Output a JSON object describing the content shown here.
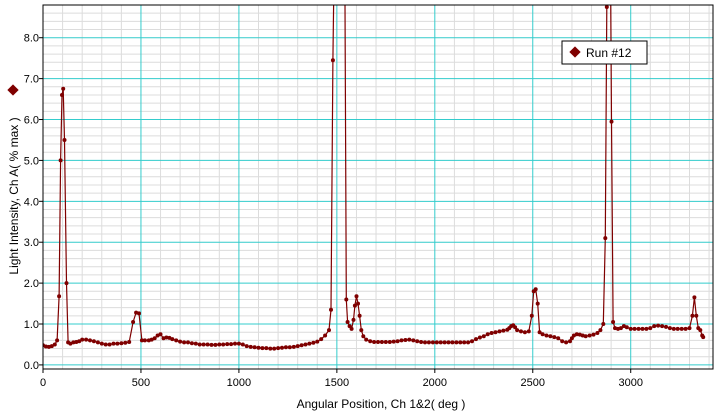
{
  "chart_data": {
    "type": "line",
    "title": "",
    "xlabel": "Angular Position, Ch 1&2( deg )",
    "ylabel": "Light Intensity, Ch A( % max )",
    "xlim": [
      0,
      3420
    ],
    "ylim": [
      -0.1,
      8.8
    ],
    "x_ticks": [
      0,
      500,
      1000,
      1500,
      2000,
      2500,
      3000
    ],
    "y_ticks": [
      0.0,
      1.0,
      2.0,
      3.0,
      4.0,
      5.0,
      6.0,
      7.0,
      8.0
    ],
    "y_tick_labels": [
      "0.0",
      "1.0",
      "2.0",
      "3.0",
      "4.0",
      "5.0",
      "6.0",
      "7.0",
      "8.0"
    ],
    "grid": true,
    "legend_position": "top-right",
    "series": [
      {
        "name": "Run #12",
        "color": "#7f0000",
        "marker": "circle",
        "points": [
          [
            0,
            0.48
          ],
          [
            15,
            0.45
          ],
          [
            30,
            0.44
          ],
          [
            45,
            0.46
          ],
          [
            60,
            0.5
          ],
          [
            72,
            0.6
          ],
          [
            82,
            1.68
          ],
          [
            90,
            5.0
          ],
          [
            97,
            6.6
          ],
          [
            103,
            6.75
          ],
          [
            110,
            5.5
          ],
          [
            120,
            2.0
          ],
          [
            128,
            0.55
          ],
          [
            140,
            0.52
          ],
          [
            155,
            0.55
          ],
          [
            170,
            0.56
          ],
          [
            185,
            0.58
          ],
          [
            200,
            0.62
          ],
          [
            220,
            0.62
          ],
          [
            240,
            0.6
          ],
          [
            260,
            0.58
          ],
          [
            280,
            0.55
          ],
          [
            300,
            0.52
          ],
          [
            320,
            0.5
          ],
          [
            340,
            0.5
          ],
          [
            360,
            0.52
          ],
          [
            380,
            0.52
          ],
          [
            400,
            0.53
          ],
          [
            420,
            0.54
          ],
          [
            440,
            0.56
          ],
          [
            460,
            1.05
          ],
          [
            475,
            1.28
          ],
          [
            490,
            1.26
          ],
          [
            505,
            0.6
          ],
          [
            520,
            0.6
          ],
          [
            540,
            0.6
          ],
          [
            555,
            0.62
          ],
          [
            570,
            0.65
          ],
          [
            585,
            0.72
          ],
          [
            600,
            0.75
          ],
          [
            615,
            0.65
          ],
          [
            630,
            0.67
          ],
          [
            645,
            0.66
          ],
          [
            660,
            0.63
          ],
          [
            680,
            0.6
          ],
          [
            700,
            0.57
          ],
          [
            720,
            0.55
          ],
          [
            740,
            0.55
          ],
          [
            760,
            0.53
          ],
          [
            780,
            0.52
          ],
          [
            800,
            0.5
          ],
          [
            820,
            0.5
          ],
          [
            840,
            0.5
          ],
          [
            860,
            0.49
          ],
          [
            880,
            0.49
          ],
          [
            900,
            0.5
          ],
          [
            920,
            0.5
          ],
          [
            940,
            0.51
          ],
          [
            960,
            0.51
          ],
          [
            980,
            0.52
          ],
          [
            1000,
            0.52
          ],
          [
            1020,
            0.5
          ],
          [
            1040,
            0.46
          ],
          [
            1060,
            0.44
          ],
          [
            1080,
            0.43
          ],
          [
            1100,
            0.42
          ],
          [
            1120,
            0.41
          ],
          [
            1140,
            0.41
          ],
          [
            1160,
            0.4
          ],
          [
            1180,
            0.4
          ],
          [
            1200,
            0.41
          ],
          [
            1220,
            0.42
          ],
          [
            1240,
            0.43
          ],
          [
            1260,
            0.43
          ],
          [
            1280,
            0.44
          ],
          [
            1300,
            0.46
          ],
          [
            1320,
            0.48
          ],
          [
            1340,
            0.5
          ],
          [
            1360,
            0.52
          ],
          [
            1380,
            0.54
          ],
          [
            1400,
            0.57
          ],
          [
            1420,
            0.63
          ],
          [
            1440,
            0.72
          ],
          [
            1460,
            0.85
          ],
          [
            1470,
            1.35
          ],
          [
            1480,
            7.45
          ],
          [
            1488,
            10.5
          ],
          [
            1540,
            10.5
          ],
          [
            1548,
            1.6
          ],
          [
            1555,
            1.05
          ],
          [
            1565,
            0.95
          ],
          [
            1575,
            0.88
          ],
          [
            1585,
            1.1
          ],
          [
            1592,
            1.45
          ],
          [
            1600,
            1.68
          ],
          [
            1608,
            1.5
          ],
          [
            1616,
            1.2
          ],
          [
            1625,
            0.85
          ],
          [
            1635,
            0.7
          ],
          [
            1650,
            0.62
          ],
          [
            1670,
            0.58
          ],
          [
            1690,
            0.56
          ],
          [
            1710,
            0.56
          ],
          [
            1730,
            0.56
          ],
          [
            1750,
            0.56
          ],
          [
            1770,
            0.56
          ],
          [
            1790,
            0.57
          ],
          [
            1810,
            0.58
          ],
          [
            1830,
            0.6
          ],
          [
            1850,
            0.61
          ],
          [
            1870,
            0.62
          ],
          [
            1890,
            0.6
          ],
          [
            1910,
            0.58
          ],
          [
            1930,
            0.56
          ],
          [
            1950,
            0.55
          ],
          [
            1970,
            0.55
          ],
          [
            1990,
            0.55
          ],
          [
            2010,
            0.55
          ],
          [
            2030,
            0.55
          ],
          [
            2050,
            0.55
          ],
          [
            2070,
            0.55
          ],
          [
            2090,
            0.55
          ],
          [
            2110,
            0.55
          ],
          [
            2130,
            0.55
          ],
          [
            2150,
            0.55
          ],
          [
            2170,
            0.55
          ],
          [
            2190,
            0.58
          ],
          [
            2210,
            0.63
          ],
          [
            2230,
            0.67
          ],
          [
            2250,
            0.7
          ],
          [
            2270,
            0.75
          ],
          [
            2290,
            0.78
          ],
          [
            2310,
            0.8
          ],
          [
            2330,
            0.82
          ],
          [
            2350,
            0.84
          ],
          [
            2370,
            0.86
          ],
          [
            2380,
            0.9
          ],
          [
            2390,
            0.95
          ],
          [
            2400,
            0.97
          ],
          [
            2410,
            0.92
          ],
          [
            2420,
            0.85
          ],
          [
            2440,
            0.82
          ],
          [
            2460,
            0.8
          ],
          [
            2480,
            0.82
          ],
          [
            2495,
            1.2
          ],
          [
            2505,
            1.8
          ],
          [
            2515,
            1.85
          ],
          [
            2525,
            1.5
          ],
          [
            2535,
            0.8
          ],
          [
            2550,
            0.75
          ],
          [
            2570,
            0.72
          ],
          [
            2590,
            0.7
          ],
          [
            2610,
            0.68
          ],
          [
            2630,
            0.65
          ],
          [
            2650,
            0.58
          ],
          [
            2670,
            0.55
          ],
          [
            2690,
            0.58
          ],
          [
            2700,
            0.65
          ],
          [
            2710,
            0.72
          ],
          [
            2725,
            0.75
          ],
          [
            2740,
            0.74
          ],
          [
            2755,
            0.72
          ],
          [
            2770,
            0.7
          ],
          [
            2790,
            0.72
          ],
          [
            2810,
            0.74
          ],
          [
            2830,
            0.78
          ],
          [
            2845,
            0.85
          ],
          [
            2860,
            1.0
          ],
          [
            2870,
            3.1
          ],
          [
            2878,
            8.75
          ],
          [
            2884,
            10.5
          ],
          [
            2896,
            10.5
          ],
          [
            2902,
            5.95
          ],
          [
            2910,
            1.05
          ],
          [
            2920,
            0.9
          ],
          [
            2935,
            0.88
          ],
          [
            2950,
            0.9
          ],
          [
            2965,
            0.95
          ],
          [
            2980,
            0.92
          ],
          [
            3000,
            0.88
          ],
          [
            3020,
            0.88
          ],
          [
            3040,
            0.88
          ],
          [
            3060,
            0.88
          ],
          [
            3080,
            0.88
          ],
          [
            3100,
            0.9
          ],
          [
            3120,
            0.95
          ],
          [
            3140,
            0.96
          ],
          [
            3160,
            0.95
          ],
          [
            3180,
            0.93
          ],
          [
            3200,
            0.9
          ],
          [
            3220,
            0.88
          ],
          [
            3240,
            0.88
          ],
          [
            3260,
            0.88
          ],
          [
            3280,
            0.88
          ],
          [
            3300,
            0.9
          ],
          [
            3315,
            1.2
          ],
          [
            3325,
            1.65
          ],
          [
            3335,
            1.2
          ],
          [
            3345,
            0.9
          ],
          [
            3355,
            0.85
          ],
          [
            3365,
            0.72
          ],
          [
            3370,
            0.68
          ]
        ]
      }
    ]
  }
}
